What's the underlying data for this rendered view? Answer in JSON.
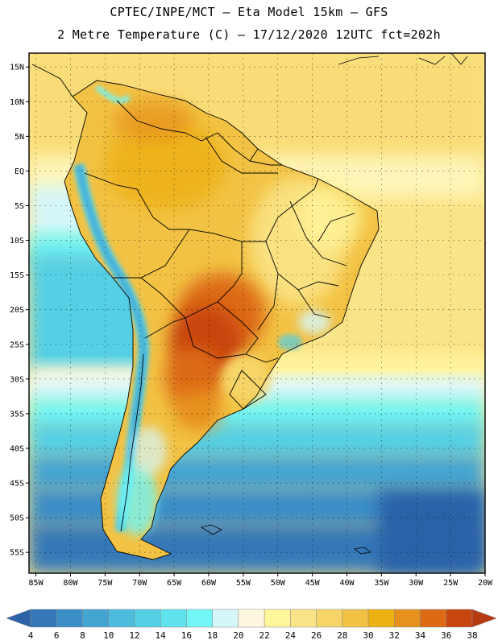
{
  "header": {
    "line1": "CPTEC/INPE/MCT –  Eta Model 15km – GFS",
    "line2": "2 Metre Temperature (C) – 17/12/2020 12UTC fct=202h"
  },
  "map": {
    "lat_range": [
      -58,
      17
    ],
    "lon_range": [
      -86,
      -20
    ],
    "lat_ticks": [
      {
        "value": 15,
        "label": "15N"
      },
      {
        "value": 10,
        "label": "10N"
      },
      {
        "value": 5,
        "label": "5N"
      },
      {
        "value": 0,
        "label": "EQ"
      },
      {
        "value": -5,
        "label": "5S"
      },
      {
        "value": -10,
        "label": "10S"
      },
      {
        "value": -15,
        "label": "15S"
      },
      {
        "value": -20,
        "label": "20S"
      },
      {
        "value": -25,
        "label": "25S"
      },
      {
        "value": -30,
        "label": "30S"
      },
      {
        "value": -35,
        "label": "35S"
      },
      {
        "value": -40,
        "label": "40S"
      },
      {
        "value": -45,
        "label": "45S"
      },
      {
        "value": -50,
        "label": "50S"
      },
      {
        "value": -55,
        "label": "55S"
      }
    ],
    "lon_ticks": [
      {
        "value": -85,
        "label": "85W"
      },
      {
        "value": -80,
        "label": "80W"
      },
      {
        "value": -75,
        "label": "75W"
      },
      {
        "value": -70,
        "label": "70W"
      },
      {
        "value": -65,
        "label": "65W"
      },
      {
        "value": -60,
        "label": "60W"
      },
      {
        "value": -55,
        "label": "55W"
      },
      {
        "value": -50,
        "label": "50W"
      },
      {
        "value": -45,
        "label": "45W"
      },
      {
        "value": -40,
        "label": "40W"
      },
      {
        "value": -35,
        "label": "35W"
      },
      {
        "value": -30,
        "label": "30W"
      },
      {
        "value": -25,
        "label": "25W"
      },
      {
        "value": -20,
        "label": "20W"
      }
    ],
    "gridlines": "dotted"
  },
  "colorbar": {
    "unit": "C",
    "labels": [
      "4",
      "6",
      "8",
      "10",
      "12",
      "14",
      "16",
      "18",
      "20",
      "22",
      "24",
      "26",
      "28",
      "30",
      "32",
      "34",
      "36",
      "38"
    ],
    "colors": [
      "#2b62a8",
      "#3478b8",
      "#3b8ec6",
      "#43a4d2",
      "#4cbbdc",
      "#55cfe4",
      "#5fe2ec",
      "#72f6f6",
      "#d6f7fa",
      "#fff8df",
      "#fff59a",
      "#fbe487",
      "#f7d468",
      "#f2c244",
      "#eeb112",
      "#e6901e",
      "#dd6a14",
      "#c84510",
      "#b53a12"
    ]
  }
}
